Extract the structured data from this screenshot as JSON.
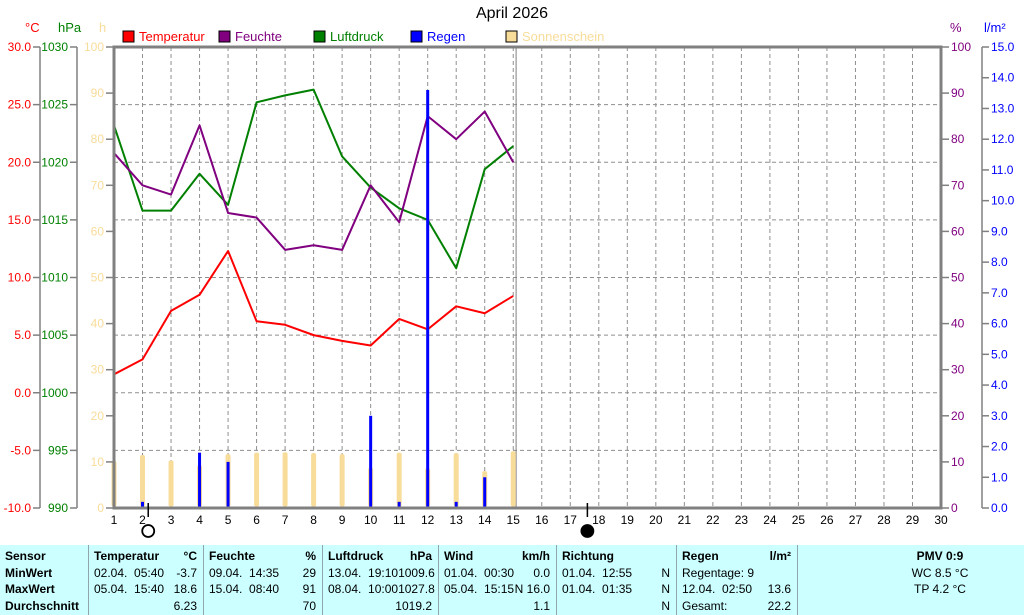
{
  "colors": {
    "background": "#ffffff",
    "frame": "#808080",
    "grid": "#8f8f8f",
    "table_background": "#ccffff",
    "table_separator": "#8fa6ad",
    "temperature": "#ff0000",
    "humidity": "#800080",
    "pressure": "#008000",
    "rain": "#0000ff",
    "sunshine": "#f8dc9a"
  },
  "chart_data": {
    "type": "line+bar",
    "title": "April 2026",
    "grid": true,
    "legend_position": "top",
    "x_range": [
      1,
      30
    ],
    "x_ticks": [
      1,
      2,
      3,
      4,
      5,
      6,
      7,
      8,
      9,
      10,
      11,
      12,
      13,
      14,
      15,
      16,
      17,
      18,
      19,
      20,
      21,
      22,
      23,
      24,
      25,
      26,
      27,
      28,
      29,
      30
    ],
    "x_days": [
      1,
      2,
      3,
      4,
      5,
      6,
      7,
      8,
      9,
      10,
      11,
      12,
      13,
      14,
      15
    ],
    "current_day_line": 15.1,
    "axes": [
      {
        "id": "°C",
        "position": "left",
        "color": "#ff0000",
        "min": -10,
        "max": 30,
        "step": 5,
        "decimals": 1
      },
      {
        "id": "hPa",
        "position": "left",
        "color": "#008000",
        "min": 990,
        "max": 1030,
        "step": 5,
        "decimals": 0
      },
      {
        "id": "h",
        "position": "left",
        "color": "#f8dc9a",
        "min": 0,
        "max": 100,
        "step": 10,
        "decimals": 0
      },
      {
        "id": "%",
        "position": "right",
        "color": "#800080",
        "min": 0,
        "max": 100,
        "step": 10,
        "decimals": 0
      },
      {
        "id": "l/m²",
        "position": "right",
        "color": "#0000ff",
        "min": 0,
        "max": 15,
        "step": 1,
        "decimals": 1
      }
    ],
    "series": [
      {
        "name": "Temperatur",
        "type": "line",
        "color": "#ff0000",
        "axis": "°C",
        "values": [
          1.6,
          2.9,
          7.1,
          8.5,
          12.3,
          6.2,
          5.9,
          5.0,
          4.5,
          4.1,
          6.4,
          5.5,
          7.5,
          6.9,
          8.4
        ]
      },
      {
        "name": "Feuchte",
        "type": "line",
        "color": "#800080",
        "axis": "%",
        "values": [
          77,
          70,
          68,
          83,
          64,
          63,
          56,
          57,
          56,
          70,
          62,
          85,
          80,
          86,
          75
        ]
      },
      {
        "name": "Luftdruck",
        "type": "line",
        "color": "#008000",
        "axis": "hPa",
        "values": [
          1023.2,
          1015.8,
          1015.8,
          1019.0,
          1016.3,
          1025.2,
          1025.8,
          1026.3,
          1020.5,
          1017.8,
          1016.0,
          1015.0,
          1010.8,
          1019.4,
          1021.4
        ]
      },
      {
        "name": "Regen",
        "type": "bar",
        "color": "#0000ff",
        "axis": "l/m²",
        "values": [
          0.9,
          0.2,
          0,
          1.8,
          1.5,
          0,
          0,
          0,
          0,
          3.0,
          0.2,
          13.6,
          0.2,
          1.0,
          0
        ]
      },
      {
        "name": "Sonnenschein",
        "type": "bar",
        "color": "#f8dc9a",
        "axis": "h",
        "values": [
          10.2,
          11.5,
          10.3,
          9.3,
          11.7,
          12.0,
          12.1,
          11.9,
          11.7,
          8.7,
          12.0,
          8.6,
          11.9,
          8.0,
          12.3
        ]
      }
    ],
    "moon_markers": [
      {
        "day": 2.2,
        "phase": "full",
        "symbol": "open-circle"
      },
      {
        "day": 17.6,
        "phase": "new",
        "symbol": "filled-circle"
      }
    ]
  },
  "stats_table": {
    "header_col": [
      "Sensor",
      "MinWert",
      "MaxWert",
      "Durchschnitt"
    ],
    "columns": [
      {
        "name": "Temperatur",
        "unit": "°C",
        "rows": [
          [
            "02.04.  05:40",
            "-3.7"
          ],
          [
            "05.04.  15:40",
            "18.6"
          ],
          [
            "",
            "6.23"
          ]
        ]
      },
      {
        "name": "Feuchte",
        "unit": "%",
        "rows": [
          [
            "09.04.  14:35",
            "29"
          ],
          [
            "15.04.  08:40",
            "91"
          ],
          [
            "",
            "70"
          ]
        ]
      },
      {
        "name": "Luftdruck",
        "unit": "hPa",
        "rows": [
          [
            "13.04.  19:10",
            "1009.6"
          ],
          [
            "08.04.  10:00",
            "1027.8"
          ],
          [
            "",
            "1019.2"
          ]
        ]
      },
      {
        "name": "Wind",
        "unit": "km/h",
        "rows": [
          [
            "01.04.  00:30",
            "0.0"
          ],
          [
            "05.04.  15:15",
            "N 16.0"
          ],
          [
            "",
            "1.1"
          ]
        ]
      },
      {
        "name": "Richtung",
        "unit": "",
        "rows": [
          [
            "01.04.  12:55",
            "N"
          ],
          [
            "01.04.  01:35",
            "N"
          ],
          [
            "",
            "N"
          ]
        ]
      },
      {
        "name": "Regen",
        "unit": "l/m²",
        "rows": [
          [
            "Regentage: 9",
            ""
          ],
          [
            "12.04.  02:50",
            "13.6"
          ],
          [
            "Gesamt:",
            "22.2"
          ]
        ]
      }
    ],
    "pmv": {
      "line1": "PMV 0:9",
      "line2": "WC 8.5 °C",
      "line3": "TP 4.2 °C"
    }
  }
}
